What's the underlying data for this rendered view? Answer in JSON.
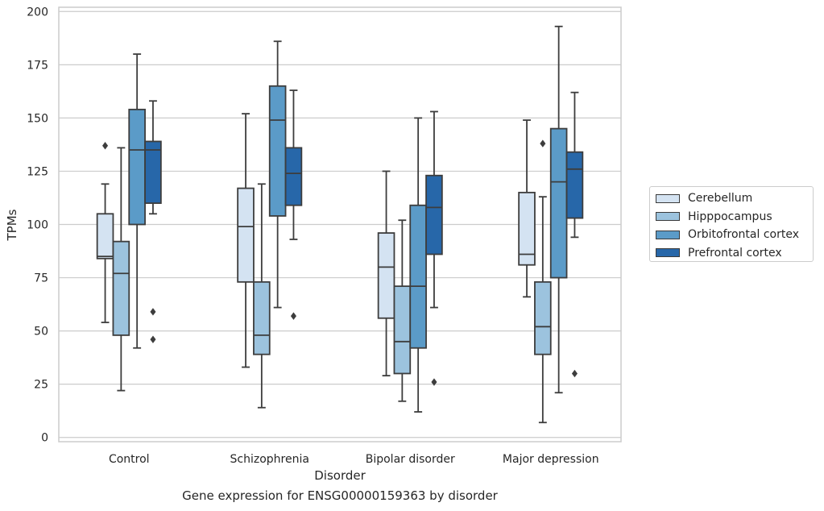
{
  "chart_data": {
    "type": "boxplot",
    "title": "Gene expression for ENSG00000159363 by disorder",
    "xlabel": "Disorder",
    "ylabel": "TPMs",
    "ylim": [
      -2,
      202
    ],
    "yticks": [
      0,
      25,
      50,
      75,
      100,
      125,
      150,
      175,
      200
    ],
    "grid": "horizontal",
    "legend_position": "right",
    "categories": [
      "Control",
      "Schizophrenia",
      "Bipolar disorder",
      "Major depression"
    ],
    "series": [
      {
        "name": "Cerebellum",
        "color": "#d4e3f2",
        "boxes": [
          {
            "whislo": 54,
            "q1": 84,
            "med": 85,
            "q3": 105,
            "whishi": 119,
            "fliers": [
              137
            ]
          },
          {
            "whislo": 33,
            "q1": 73,
            "med": 99,
            "q3": 117,
            "whishi": 152,
            "fliers": []
          },
          {
            "whislo": 29,
            "q1": 56,
            "med": 80,
            "q3": 96,
            "whishi": 125,
            "fliers": []
          },
          {
            "whislo": 66,
            "q1": 81,
            "med": 86,
            "q3": 115,
            "whishi": 149,
            "fliers": []
          }
        ]
      },
      {
        "name": "Hipppocampus",
        "color": "#9cc3de",
        "boxes": [
          {
            "whislo": 22,
            "q1": 48,
            "med": 77,
            "q3": 92,
            "whishi": 136,
            "fliers": []
          },
          {
            "whislo": 14,
            "q1": 39,
            "med": 48,
            "q3": 73,
            "whishi": 119,
            "fliers": []
          },
          {
            "whislo": 17,
            "q1": 30,
            "med": 45,
            "q3": 71,
            "whishi": 102,
            "fliers": []
          },
          {
            "whislo": 7,
            "q1": 39,
            "med": 52,
            "q3": 73,
            "whishi": 113,
            "fliers": [
              138
            ]
          }
        ]
      },
      {
        "name": "Orbitofrontal cortex",
        "color": "#5b9bc8",
        "boxes": [
          {
            "whislo": 42,
            "q1": 100,
            "med": 135,
            "q3": 154,
            "whishi": 180,
            "fliers": []
          },
          {
            "whislo": 61,
            "q1": 104,
            "med": 149,
            "q3": 165,
            "whishi": 186,
            "fliers": []
          },
          {
            "whislo": 12,
            "q1": 42,
            "med": 71,
            "q3": 109,
            "whishi": 150,
            "fliers": []
          },
          {
            "whislo": 21,
            "q1": 75,
            "med": 120,
            "q3": 145,
            "whishi": 193,
            "fliers": []
          }
        ]
      },
      {
        "name": "Prefrontal cortex",
        "color": "#2767a9",
        "boxes": [
          {
            "whislo": 105,
            "q1": 110,
            "med": 135,
            "q3": 139,
            "whishi": 158,
            "fliers": [
              59,
              46
            ]
          },
          {
            "whislo": 93,
            "q1": 109,
            "med": 124,
            "q3": 136,
            "whishi": 163,
            "fliers": [
              57
            ]
          },
          {
            "whislo": 61,
            "q1": 86,
            "med": 108,
            "q3": 123,
            "whishi": 153,
            "fliers": [
              26
            ]
          },
          {
            "whislo": 94,
            "q1": 103,
            "med": 126,
            "q3": 134,
            "whishi": 162,
            "fliers": [
              30
            ]
          }
        ]
      }
    ]
  }
}
